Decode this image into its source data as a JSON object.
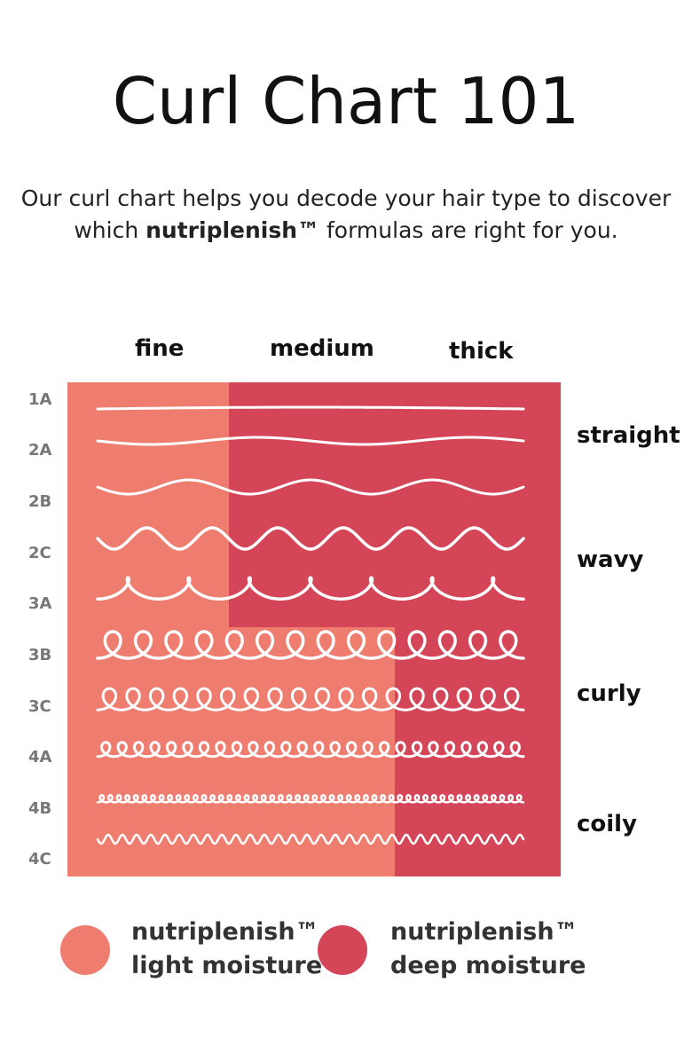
{
  "title": "Curl Chart 101",
  "intro": {
    "line1": "Our curl chart helps you decode your hair type to discover",
    "line2_before": "which ",
    "line2_brand": "nutriplenish™",
    "line2_after": " formulas are right for you."
  },
  "columns": [
    "fine",
    "medium",
    "thick"
  ],
  "rows": [
    "1A",
    "2A",
    "2B",
    "2C",
    "3A",
    "3B",
    "3C",
    "4A",
    "4B",
    "4C"
  ],
  "categories": [
    "straight",
    "wavy",
    "curly",
    "coily"
  ],
  "legend": [
    {
      "line1": "nutriplenish™",
      "line2": "light moisture",
      "color": "#ef7d6f"
    },
    {
      "line1": "nutriplenish™",
      "line2": "deep moisture",
      "color": "#d34557"
    }
  ],
  "colors": {
    "light": "#ef7d6f",
    "deep": "#d34557",
    "stroke": "#ffffff"
  }
}
